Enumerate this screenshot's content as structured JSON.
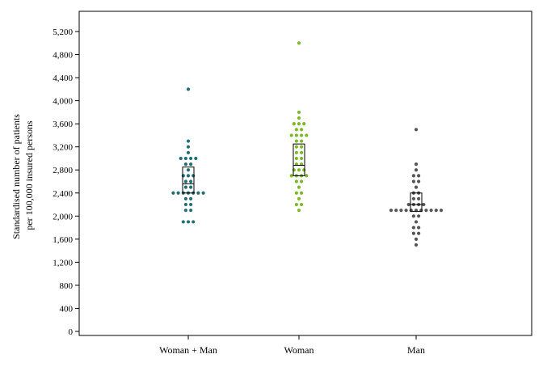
{
  "chart_data": {
    "type": "dot-strip",
    "title": "",
    "xlabel": "",
    "ylabel": [
      "Standardised number of patients",
      "per 100,000 insured persons"
    ],
    "ylim": [
      -60,
      5600
    ],
    "yticks": [
      0,
      400,
      800,
      1200,
      1600,
      2000,
      2400,
      2800,
      3200,
      3600,
      4000,
      4400,
      4800,
      5200
    ],
    "ytick_labels": [
      "0",
      "400",
      "800",
      "1,200",
      "1,600",
      "2,000",
      "2,400",
      "2,800",
      "3,200",
      "3,600",
      "4,000",
      "4,400",
      "4,800",
      "5,200"
    ],
    "grid": false,
    "legend": "none",
    "categories": [
      "Woman + Man",
      "Woman",
      "Man"
    ],
    "series": [
      {
        "category": "Woman + Man",
        "color": "#236e74",
        "values": [
          1900,
          1900,
          1900,
          2100,
          2100,
          2200,
          2200,
          2300,
          2300,
          2400,
          2400,
          2400,
          2400,
          2400,
          2400,
          2400,
          2500,
          2500,
          2600,
          2600,
          2700,
          2700,
          2700,
          2800,
          2900,
          2900,
          3000,
          3000,
          3000,
          3000,
          3100,
          3200,
          3300,
          4200
        ],
        "box": {
          "q1": 2400,
          "median": 2560,
          "q3": 2850
        }
      },
      {
        "category": "Woman",
        "color": "#7bb928",
        "values": [
          2100,
          2200,
          2200,
          2300,
          2400,
          2400,
          2500,
          2600,
          2600,
          2700,
          2700,
          2700,
          2700,
          2800,
          2800,
          2800,
          2900,
          2900,
          3000,
          3000,
          3100,
          3100,
          3200,
          3200,
          3300,
          3300,
          3400,
          3400,
          3400,
          3400,
          3500,
          3500,
          3600,
          3600,
          3600,
          3700,
          3800,
          5000
        ],
        "box": {
          "q1": 2700,
          "median": 2880,
          "q3": 3250
        }
      },
      {
        "category": "Man",
        "color": "#555555",
        "values": [
          1500,
          1600,
          1700,
          1700,
          1800,
          1800,
          1900,
          2000,
          2000,
          2100,
          2100,
          2100,
          2100,
          2100,
          2100,
          2100,
          2100,
          2100,
          2100,
          2100,
          2200,
          2200,
          2200,
          2200,
          2300,
          2300,
          2400,
          2400,
          2500,
          2600,
          2600,
          2700,
          2700,
          2800,
          2900,
          3500
        ],
        "box": {
          "q1": 2080,
          "median": 2200,
          "q3": 2400
        }
      }
    ]
  }
}
